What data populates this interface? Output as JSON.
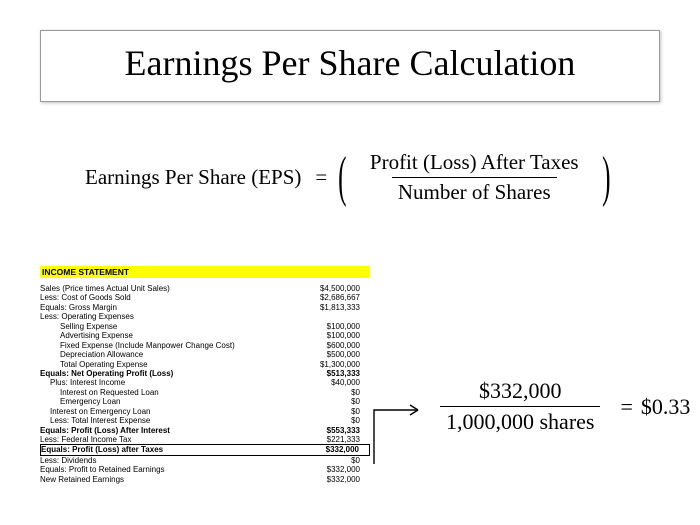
{
  "title": "Earnings Per Share Calculation",
  "formula": {
    "lhs": "Earnings  Per Share (EPS)",
    "eq": "=",
    "numerator": "Profit  (Loss) After Taxes",
    "denominator": "Number of Shares"
  },
  "statement": {
    "header": "INCOME STATEMENT",
    "rows": [
      {
        "label": "Sales (Price times Actual Unit Sales)",
        "value": "$4,500,000",
        "indent": 0,
        "bold": false
      },
      {
        "label": "Less: Cost of Goods Sold",
        "value": "$2,686,667",
        "indent": 0,
        "bold": false
      },
      {
        "label": "Equals: Gross Margin",
        "value": "$1,813,333",
        "indent": 0,
        "bold": false
      },
      {
        "label": "Less: Operating Expenses",
        "value": "",
        "indent": 0,
        "bold": false
      },
      {
        "label": "Selling Expense",
        "value": "$100,000",
        "indent": 2,
        "bold": false
      },
      {
        "label": "Advertising Expense",
        "value": "$100,000",
        "indent": 2,
        "bold": false
      },
      {
        "label": "Fixed Expense (Include Manpower Change Cost)",
        "value": "$600,000",
        "indent": 2,
        "bold": false
      },
      {
        "label": "Depreciation Allowance",
        "value": "$500,000",
        "indent": 2,
        "bold": false
      },
      {
        "label": "Total Operating Expense",
        "value": "$1,300,000",
        "indent": 2,
        "bold": false
      },
      {
        "label": "Equals: Net Operating Profit (Loss)",
        "value": "$513,333",
        "indent": 0,
        "bold": true
      },
      {
        "label": "Plus: Interest Income",
        "value": "$40,000",
        "indent": 1,
        "bold": false
      },
      {
        "label": "Interest on Requested Loan",
        "value": "$0",
        "indent": 2,
        "bold": false
      },
      {
        "label": "Emergency Loan",
        "value": "$0",
        "indent": 2,
        "bold": false
      },
      {
        "label": "Interest on Emergency Loan",
        "value": "$0",
        "indent": 1,
        "bold": false
      },
      {
        "label": "Less: Total Interest Expense",
        "value": "$0",
        "indent": 1,
        "bold": false
      },
      {
        "label": "Equals: Profit (Loss) After Interest",
        "value": "$553,333",
        "indent": 0,
        "bold": true
      },
      {
        "label": "Less: Federal Income Tax",
        "value": "$221,333",
        "indent": 0,
        "bold": false
      },
      {
        "label": "Equals: Profit (Loss) after Taxes",
        "value": "$332,000",
        "indent": 0,
        "bold": true,
        "boxed": true
      },
      {
        "label": "Less: Dividends",
        "value": "$0",
        "indent": 0,
        "bold": false
      },
      {
        "label": "Equals: Profit to Retained Earnings",
        "value": "$332,000",
        "indent": 0,
        "bold": false
      },
      {
        "label": "New Retained Earnings",
        "value": "$332,000",
        "indent": 0,
        "bold": false
      }
    ]
  },
  "calc": {
    "numerator": "$332,000",
    "denominator": "1,000,000 shares",
    "eq": "=",
    "result": "$0.33"
  },
  "colors": {
    "highlight": "#ffff00",
    "text": "#000000",
    "background": "#ffffff",
    "border": "#999999"
  },
  "arrow": {
    "stroke": "#000000",
    "width": 1.4
  }
}
